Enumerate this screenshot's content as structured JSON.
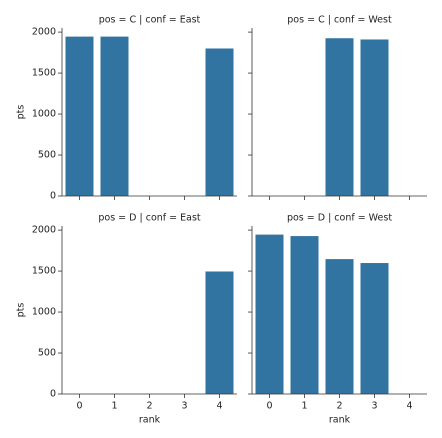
{
  "chart_data": [
    {
      "type": "bar",
      "title": "pos = C | conf = East",
      "categories": [
        0,
        1,
        2,
        3,
        4
      ],
      "values": [
        1945,
        1945,
        null,
        null,
        1800
      ],
      "color": "#3274a1",
      "ylim": [
        0,
        2050
      ],
      "yticks": [
        0,
        500,
        1000,
        1500,
        2000
      ],
      "ylabel": "pts"
    },
    {
      "type": "bar",
      "title": "pos = C | conf = West",
      "categories": [
        0,
        1,
        2,
        3,
        4
      ],
      "values": [
        null,
        null,
        1925,
        1910,
        null
      ],
      "color": "#3274a1",
      "ylim": [
        0,
        2050
      ],
      "yticks": [
        0,
        500,
        1000,
        1500,
        2000
      ]
    },
    {
      "type": "bar",
      "title": "pos = D | conf = East",
      "categories": [
        0,
        1,
        2,
        3,
        4
      ],
      "values": [
        null,
        null,
        null,
        null,
        1495
      ],
      "color": "#3274a1",
      "ylim": [
        0,
        2050
      ],
      "yticks": [
        0,
        500,
        1000,
        1500,
        2000
      ],
      "ylabel": "pts",
      "xlabel": "rank"
    },
    {
      "type": "bar",
      "title": "pos = D | conf = West",
      "categories": [
        0,
        1,
        2,
        3,
        4
      ],
      "values": [
        1945,
        1927,
        1646,
        1598,
        null
      ],
      "color": "#3274a1",
      "ylim": [
        0,
        2050
      ],
      "yticks": [
        0,
        500,
        1000,
        1500,
        2000
      ],
      "xlabel": "rank"
    }
  ]
}
